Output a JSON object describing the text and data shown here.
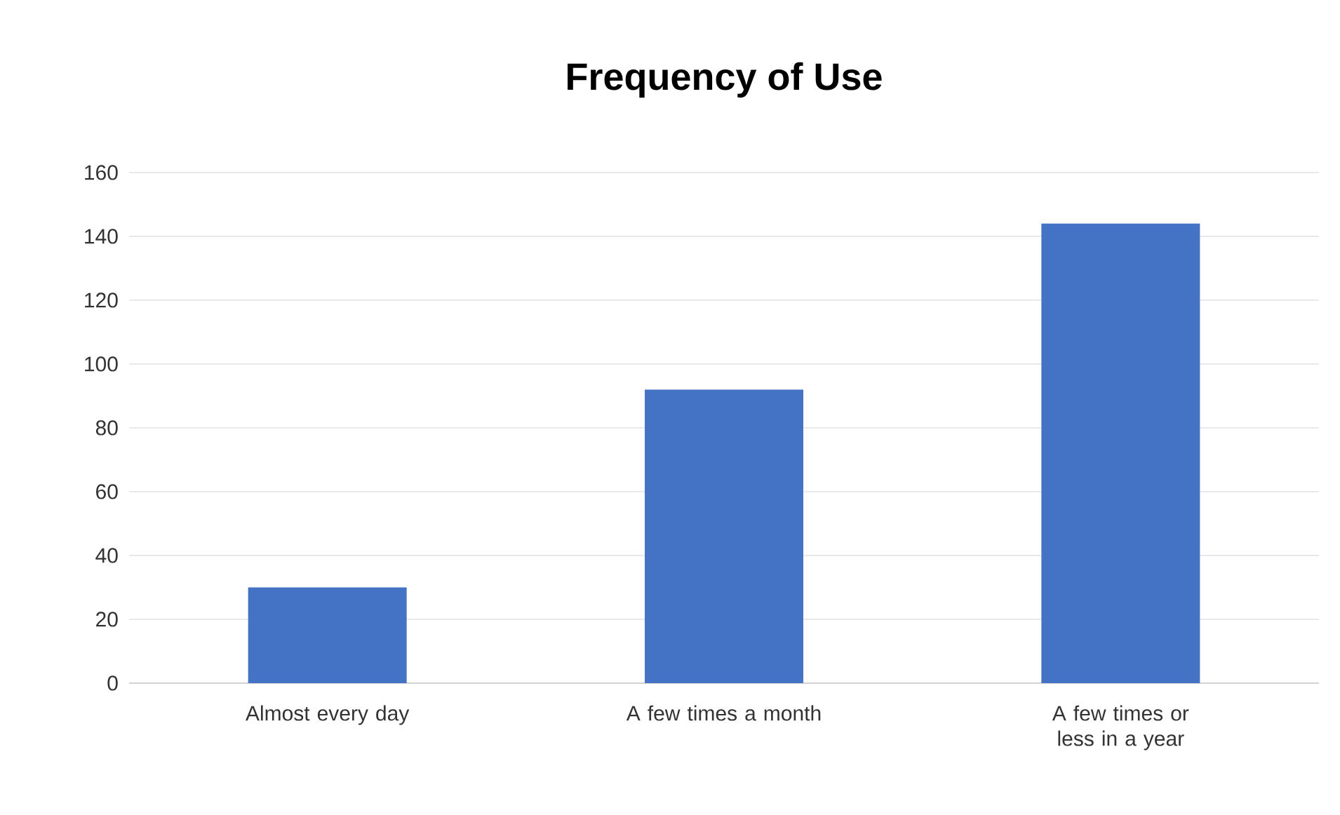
{
  "chart_data": {
    "type": "bar",
    "title": "Frequency of Use",
    "categories": [
      "Almost every day",
      "A few times a month",
      "A few times or less in a year"
    ],
    "values": [
      30,
      92,
      144
    ],
    "color": "#4472c4",
    "ylim": [
      0,
      160
    ],
    "yticks": [
      0,
      20,
      40,
      60,
      80,
      100,
      120,
      140,
      160
    ],
    "grid": "y"
  }
}
